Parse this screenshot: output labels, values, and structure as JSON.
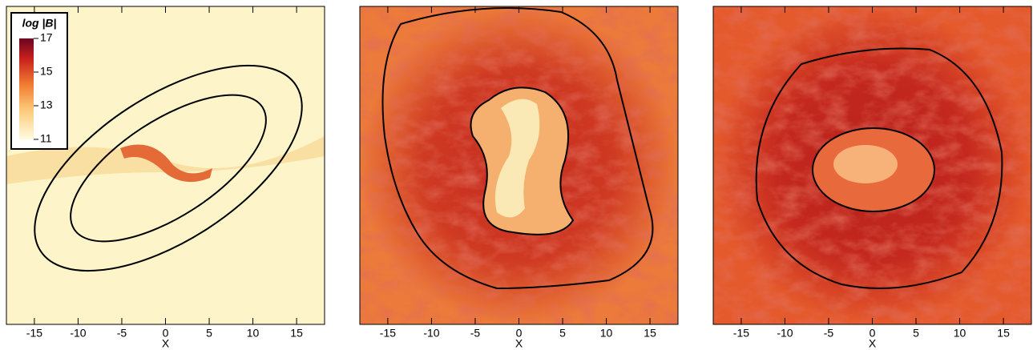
{
  "chart_data": [
    {
      "type": "heatmap",
      "xlabel": "X",
      "xlim": [
        -18.2,
        18.2
      ],
      "xticks": [
        -15,
        -10,
        -5,
        0,
        5,
        10,
        15
      ],
      "colorbar": {
        "title": "log |B|",
        "lim": [
          11,
          17
        ],
        "ticks": [
          11,
          13,
          15,
          17
        ]
      }
    },
    {
      "type": "heatmap",
      "xlabel": "X",
      "xlim": [
        -18.2,
        18.2
      ],
      "xticks": [
        -15,
        -10,
        -5,
        0,
        5,
        10,
        15
      ]
    },
    {
      "type": "heatmap",
      "xlabel": "X",
      "xlim": [
        -18.2,
        18.2
      ],
      "xticks": [
        -15,
        -10,
        -5,
        0,
        5,
        10,
        15
      ]
    }
  ]
}
